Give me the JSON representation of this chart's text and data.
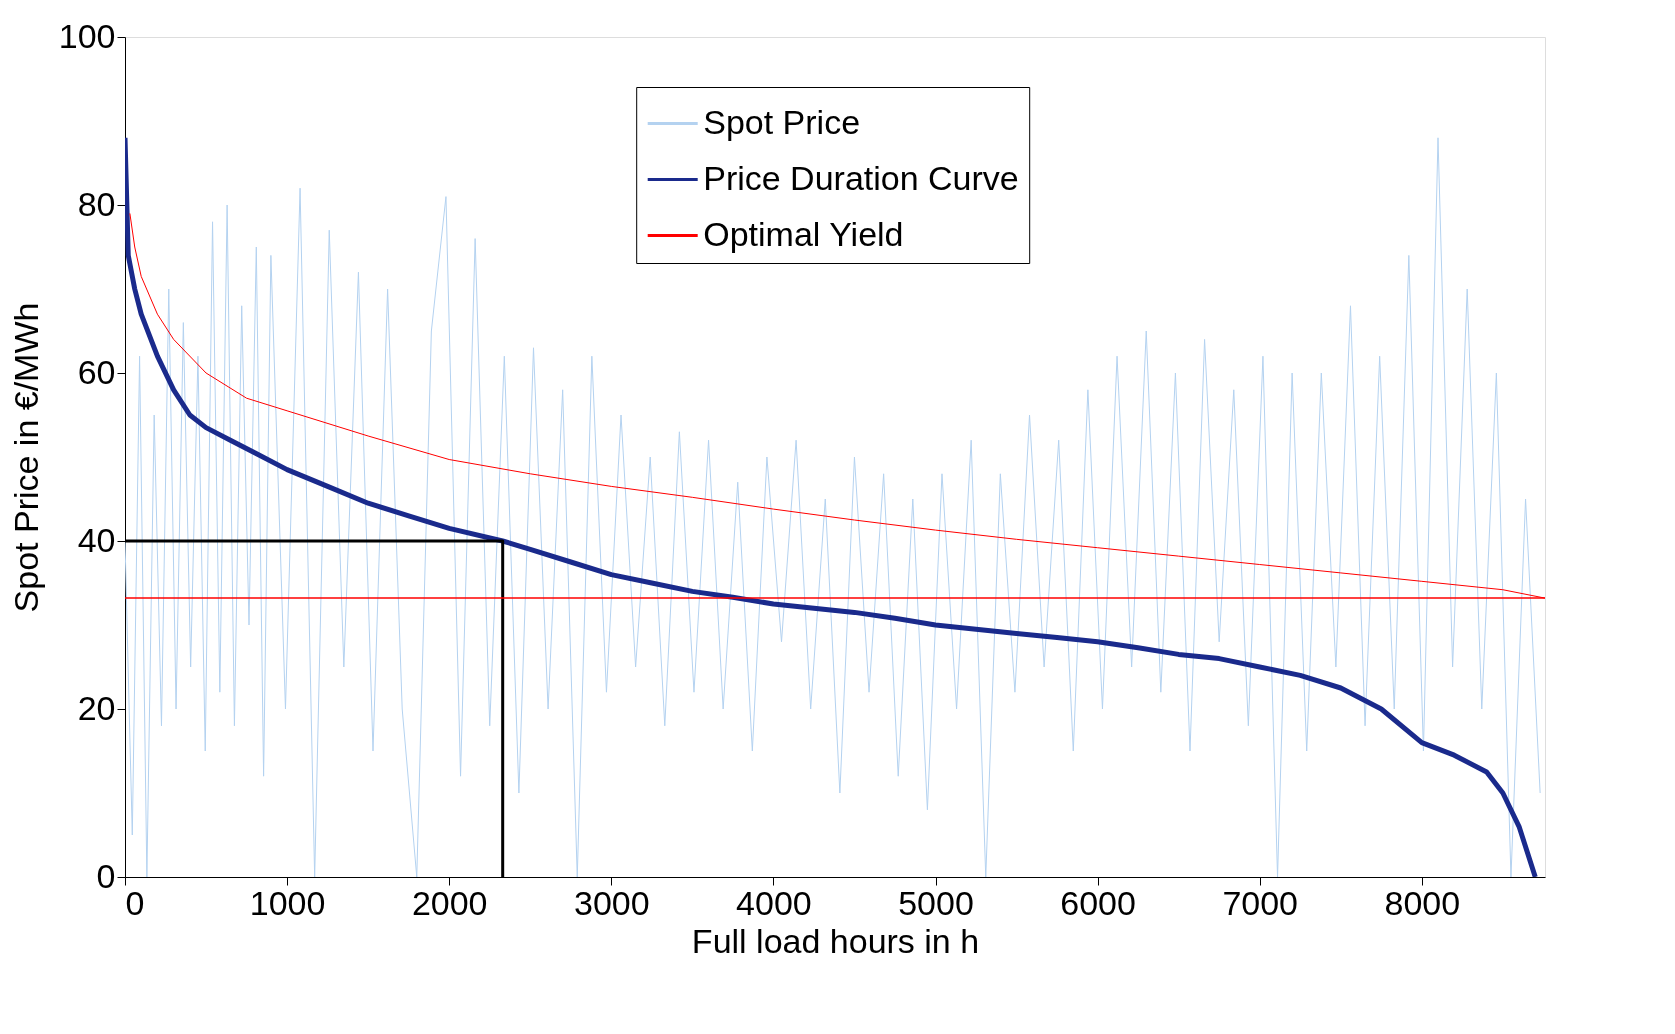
{
  "chart_data": {
    "type": "line",
    "xlabel": "Full load hours in h",
    "ylabel": "Spot Price in €/MWh",
    "xlim": [
      0,
      8760
    ],
    "ylim": [
      0,
      100
    ],
    "xticks": [
      0,
      1000,
      2000,
      3000,
      4000,
      5000,
      6000,
      7000,
      8000
    ],
    "yticks": [
      0,
      20,
      40,
      60,
      80,
      100
    ],
    "grid": false,
    "legend": "top",
    "line_style": "solid",
    "marker": "none",
    "series": [
      {
        "name": "Spot Price",
        "color": "#b4d2f0",
        "x": [
          0,
          45,
          90,
          135,
          180,
          225,
          270,
          315,
          360,
          405,
          450,
          495,
          540,
          585,
          630,
          675,
          720,
          765,
          810,
          855,
          900,
          990,
          1080,
          1170,
          1260,
          1350,
          1440,
          1530,
          1620,
          1710,
          1800,
          1890,
          1980,
          2070,
          2160,
          2250,
          2340,
          2430,
          2520,
          2610,
          2700,
          2790,
          2880,
          2970,
          3060,
          3150,
          3240,
          3330,
          3420,
          3510,
          3600,
          3690,
          3780,
          3870,
          3960,
          4050,
          4140,
          4230,
          4320,
          4410,
          4500,
          4590,
          4680,
          4770,
          4860,
          4950,
          5040,
          5130,
          5220,
          5310,
          5400,
          5490,
          5580,
          5670,
          5760,
          5850,
          5940,
          6030,
          6120,
          6210,
          6300,
          6390,
          6480,
          6570,
          6660,
          6750,
          6840,
          6930,
          7020,
          7110,
          7200,
          7290,
          7380,
          7470,
          7560,
          7650,
          7740,
          7830,
          7920,
          8010,
          8100,
          8190,
          8280,
          8370,
          8460,
          8550,
          8640,
          8730
        ],
        "values": [
          40,
          5,
          62,
          0,
          55,
          18,
          70,
          20,
          66,
          25,
          62,
          15,
          78,
          22,
          80,
          18,
          68,
          30,
          75,
          12,
          74,
          20,
          82,
          0,
          77,
          25,
          72,
          15,
          70,
          20,
          0,
          65,
          81,
          12,
          76,
          18,
          62,
          10,
          63,
          20,
          58,
          0,
          62,
          22,
          55,
          25,
          50,
          18,
          53,
          22,
          52,
          20,
          47,
          15,
          50,
          28,
          52,
          20,
          45,
          10,
          50,
          22,
          48,
          12,
          45,
          8,
          48,
          20,
          52,
          0,
          48,
          22,
          55,
          25,
          52,
          15,
          58,
          20,
          62,
          25,
          65,
          22,
          60,
          15,
          64,
          28,
          58,
          18,
          62,
          0,
          60,
          15,
          60,
          25,
          68,
          18,
          62,
          20,
          74,
          15,
          88,
          25,
          70,
          20,
          60,
          0,
          45,
          10
        ]
      },
      {
        "name": "Price Duration Curve",
        "color": "#1a2a8c",
        "x": [
          0,
          20,
          60,
          100,
          200,
          300,
          400,
          500,
          650,
          800,
          1000,
          1250,
          1500,
          1750,
          2000,
          2330,
          2500,
          2750,
          3000,
          3250,
          3500,
          3750,
          4000,
          4250,
          4500,
          4750,
          5000,
          5250,
          5500,
          5750,
          6000,
          6250,
          6500,
          6750,
          7000,
          7250,
          7500,
          7750,
          8000,
          8200,
          8400,
          8500,
          8600,
          8650,
          8700
        ],
        "values": [
          88,
          74,
          70,
          67,
          62,
          58,
          55,
          53.5,
          52,
          50.5,
          48.5,
          46.5,
          44.5,
          43,
          41.5,
          40,
          39,
          37.5,
          36,
          35,
          34,
          33.3,
          32.5,
          32,
          31.5,
          30.8,
          30,
          29.5,
          29,
          28.5,
          28,
          27.3,
          26.5,
          26,
          25,
          24,
          22.5,
          20,
          16,
          14.5,
          12.5,
          10,
          6,
          3,
          0
        ]
      },
      {
        "name": "Optimal Yield",
        "color": "#ff0000",
        "x": [
          30,
          60,
          100,
          200,
          300,
          500,
          750,
          1000,
          1500,
          2000,
          2500,
          3000,
          3500,
          4000,
          4500,
          5000,
          5500,
          6000,
          6500,
          7000,
          7500,
          8000,
          8500,
          8760
        ],
        "values": [
          79,
          75,
          71.5,
          67,
          64,
          60,
          57,
          55.5,
          52.5,
          49.7,
          48,
          46.5,
          45.2,
          43.8,
          42.5,
          41.3,
          40.2,
          39.2,
          38.2,
          37.2,
          36.2,
          35.2,
          34.2,
          33.2
        ]
      },
      {
        "color": "#000000",
        "x": [
          0,
          2330,
          2330
        ],
        "values": [
          40,
          40,
          0
        ]
      }
    ],
    "ref_lines": [
      {
        "axis": "y",
        "value": 33.2,
        "color": "#ff0000"
      }
    ]
  }
}
